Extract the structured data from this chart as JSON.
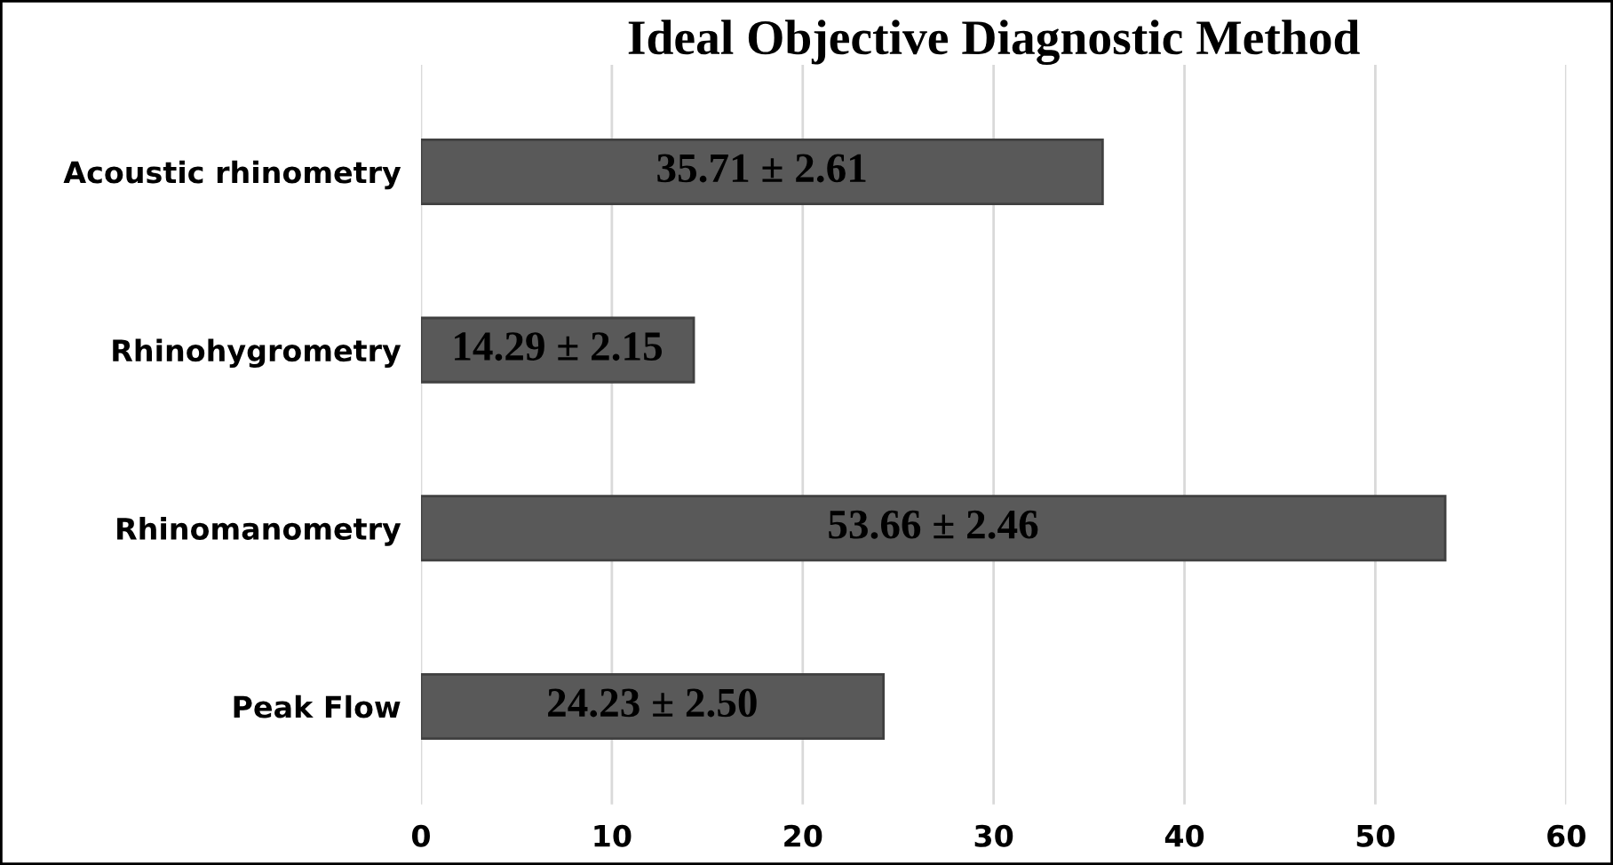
{
  "chart_data": {
    "type": "bar",
    "orientation": "horizontal",
    "title": "Ideal Objective Diagnostic Method",
    "categories": [
      "Acoustic rhinometry",
      "Rhinohygrometry",
      "Rhinomanometry",
      "Peak Flow"
    ],
    "values": [
      35.71,
      14.29,
      53.66,
      24.23
    ],
    "value_labels": [
      "35.71 ± 2.61",
      "14.29 ± 2.15",
      "53.66 ± 2.46",
      "24.23 ± 2.50"
    ],
    "color": "#595959",
    "xlim": [
      0,
      60
    ],
    "xticks": [
      0,
      10,
      20,
      30,
      40,
      50,
      60
    ],
    "grid": "x",
    "legend": false
  }
}
